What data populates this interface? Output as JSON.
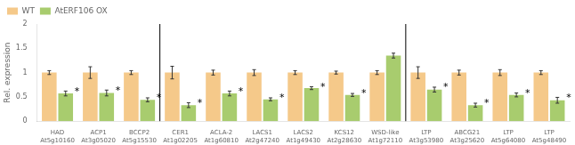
{
  "chart_data": {
    "type": "bar",
    "ylabel": "Rel. expression",
    "categories": [
      [
        "HAD",
        "At5g10160"
      ],
      [
        "ACP1",
        "At3g05020"
      ],
      [
        "BCCP2",
        "At5g15530"
      ],
      [
        "CER1",
        "At1g02205"
      ],
      [
        "ACLA-2",
        "At1g60810"
      ],
      [
        "LACS1",
        "At2g47240"
      ],
      [
        "LACS2",
        "At1g49430"
      ],
      [
        "KCS12",
        "At2g28630"
      ],
      [
        "WSD-like",
        "At1g72110"
      ],
      [
        "LTP",
        "At3g53980"
      ],
      [
        "ABCG21",
        "At3g25620"
      ],
      [
        "LTP",
        "At5g64080"
      ],
      [
        "LTP",
        "At5g48490"
      ]
    ],
    "sections": [
      0,
      0,
      0,
      1,
      1,
      1,
      1,
      1,
      1,
      2,
      2,
      2,
      2
    ],
    "series": [
      {
        "name": "WT",
        "color": "#F5C98A",
        "values": [
          1.0,
          1.0,
          1.0,
          1.0,
          1.0,
          1.0,
          1.0,
          1.0,
          1.0,
          1.0,
          1.0,
          1.0,
          1.0
        ],
        "errors": [
          0.04,
          0.12,
          0.04,
          0.13,
          0.05,
          0.06,
          0.04,
          0.03,
          0.04,
          0.12,
          0.05,
          0.06,
          0.04
        ]
      },
      {
        "name": "AtERF106 OX",
        "color": "#A8CC6E",
        "values": [
          0.57,
          0.58,
          0.44,
          0.33,
          0.57,
          0.45,
          0.68,
          0.54,
          1.35,
          0.65,
          0.33,
          0.54,
          0.43
        ],
        "errors": [
          0.05,
          0.06,
          0.04,
          0.05,
          0.05,
          0.03,
          0.03,
          0.03,
          0.05,
          0.05,
          0.04,
          0.04,
          0.06
        ],
        "annotations": [
          "*",
          "*",
          "*",
          "*",
          "*",
          "*",
          "*",
          "*",
          null,
          "*",
          "*",
          "*",
          "*"
        ]
      }
    ],
    "ylim": [
      0,
      2.0
    ],
    "yticks": [
      0,
      0.5,
      1,
      1.5,
      2
    ],
    "grid": false,
    "legend": "upper left"
  }
}
